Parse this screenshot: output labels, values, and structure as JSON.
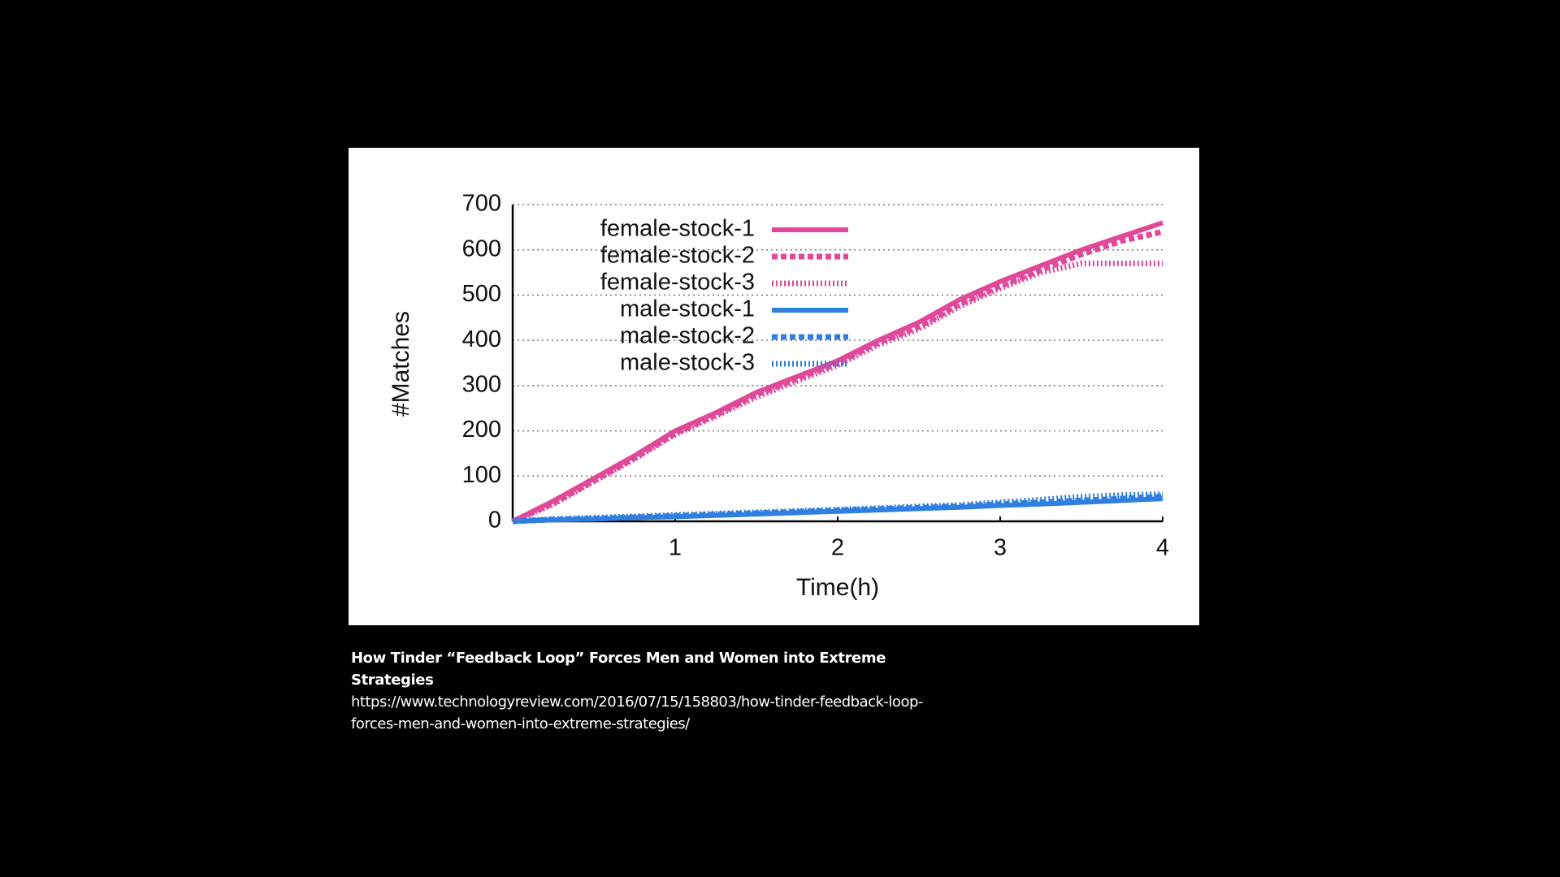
{
  "chart_data": {
    "type": "line",
    "xlabel": "Time(h)",
    "ylabel": "#Matches",
    "x": [
      0,
      0.25,
      0.5,
      0.75,
      1,
      1.25,
      1.5,
      1.75,
      2,
      2.25,
      2.5,
      2.75,
      3,
      3.25,
      3.5,
      3.75,
      4
    ],
    "series": [
      {
        "name": "female-stock-1",
        "color": "#e0489a",
        "dash": "solid",
        "values": [
          0,
          45,
          95,
          145,
          200,
          240,
          285,
          320,
          355,
          400,
          440,
          490,
          530,
          565,
          600,
          630,
          660
        ]
      },
      {
        "name": "female-stock-2",
        "color": "#e0489a",
        "dash": "dashed",
        "values": [
          0,
          40,
          90,
          140,
          195,
          235,
          280,
          315,
          350,
          395,
          430,
          480,
          520,
          555,
          590,
          620,
          640
        ]
      },
      {
        "name": "female-stock-3",
        "color": "#e0489a",
        "dash": "dotted",
        "values": [
          0,
          38,
          88,
          138,
          192,
          232,
          275,
          310,
          345,
          390,
          425,
          475,
          515,
          550,
          570,
          570,
          570
        ]
      },
      {
        "name": "male-stock-1",
        "color": "#2f7fe0",
        "dash": "solid",
        "values": [
          0,
          3,
          5,
          8,
          10,
          13,
          16,
          19,
          22,
          25,
          28,
          31,
          35,
          38,
          42,
          46,
          50
        ]
      },
      {
        "name": "male-stock-2",
        "color": "#2f7fe0",
        "dash": "dashed",
        "values": [
          0,
          4,
          6,
          9,
          12,
          15,
          18,
          21,
          24,
          27,
          30,
          33,
          38,
          42,
          46,
          50,
          55
        ]
      },
      {
        "name": "male-stock-3",
        "color": "#2f7fe0",
        "dash": "dotted",
        "values": [
          0,
          5,
          8,
          11,
          14,
          17,
          20,
          23,
          26,
          29,
          33,
          36,
          42,
          48,
          54,
          58,
          60
        ]
      }
    ],
    "xlim": [
      0,
      4
    ],
    "xticks": [
      1,
      2,
      3,
      4
    ],
    "ylim": [
      0,
      700
    ],
    "yticks": [
      0,
      100,
      200,
      300,
      400,
      500,
      600,
      700
    ],
    "grid": true,
    "legend": "upper left"
  },
  "caption": {
    "title": "How Tinder “Feedback Loop” Forces Men and Women into Extreme Strategies",
    "url": "https://www.technologyreview.com/2016/07/15/158803/how-tinder-feedback-loop-forces-men-and-women-into-extreme-strategies/"
  }
}
